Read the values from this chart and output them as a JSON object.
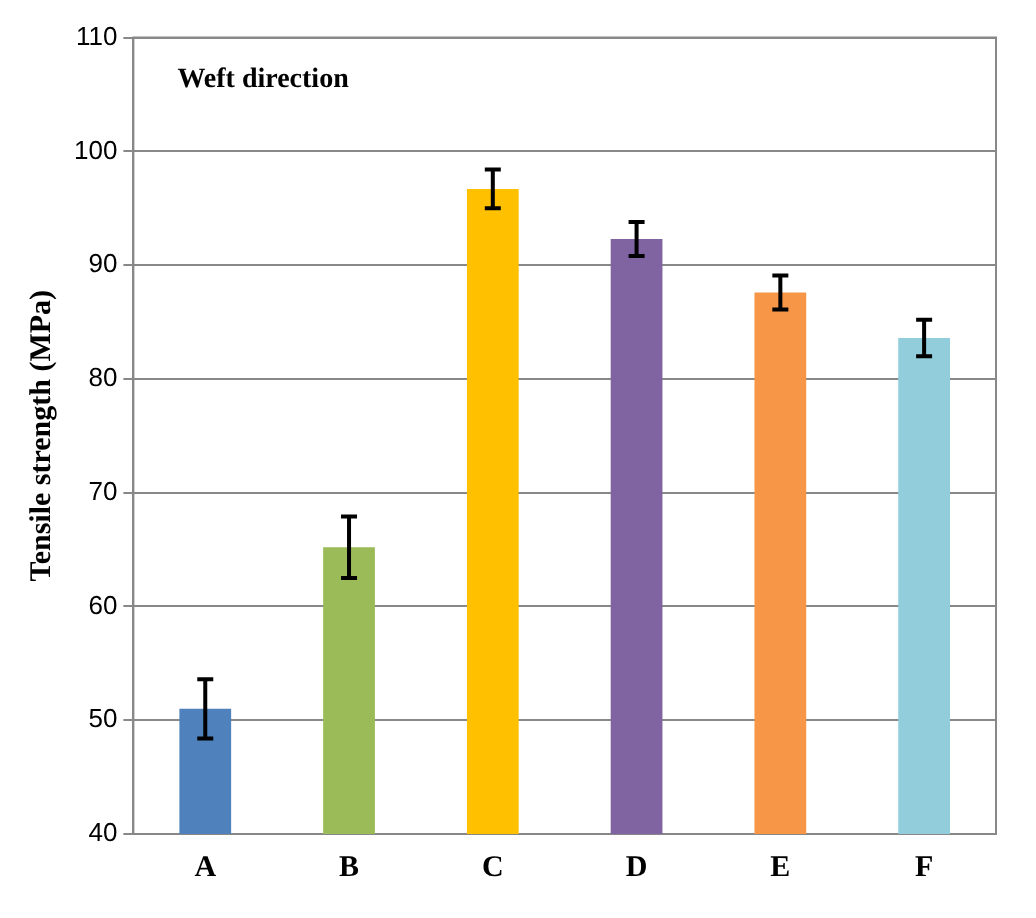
{
  "chart_data": {
    "type": "bar",
    "title": "Weft direction",
    "ylabel": "Tensile strength (MPa)",
    "categories": [
      "A",
      "B",
      "C",
      "D",
      "E",
      "F"
    ],
    "values": [
      51,
      65.2,
      96.7,
      92.3,
      87.6,
      83.6
    ],
    "errors": [
      2.6,
      2.7,
      1.7,
      1.5,
      1.5,
      1.6
    ],
    "colors": [
      "#4f81bd",
      "#9bbb59",
      "#ffc000",
      "#8064a2",
      "#f79646",
      "#92cddc"
    ],
    "ylim": [
      40,
      110
    ],
    "yticks": [
      40,
      50,
      60,
      70,
      80,
      90,
      100,
      110
    ],
    "grid": "y",
    "legend": false
  }
}
